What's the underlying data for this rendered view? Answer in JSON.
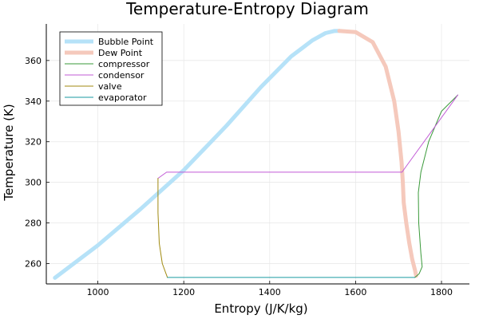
{
  "chart_data": {
    "type": "line",
    "title": "Temperature-Entropy Diagram",
    "xlabel": "Entropy (J/K/kg)",
    "ylabel": "Temperature (K)",
    "xlim": [
      880,
      1865
    ],
    "ylim": [
      250,
      378
    ],
    "xticks": [
      1000,
      1200,
      1400,
      1600,
      1800
    ],
    "yticks": [
      260,
      280,
      300,
      320,
      340,
      360
    ],
    "grid": true,
    "legend": "top-left",
    "series": [
      {
        "name": "Bubble Point",
        "color": "#b6e2f8",
        "width": 5,
        "x": [
          900,
          1000,
          1100,
          1200,
          1300,
          1380,
          1450,
          1500,
          1530,
          1550,
          1562
        ],
        "y": [
          253,
          269,
          287,
          306,
          328,
          347,
          362,
          370,
          373.5,
          374.5,
          374.6
        ]
      },
      {
        "name": "Dew Point",
        "color": "#f5c9bc",
        "width": 5,
        "x": [
          1562,
          1600,
          1640,
          1670,
          1690,
          1700,
          1707,
          1710,
          1712,
          1718,
          1725,
          1732,
          1738,
          1741
        ],
        "y": [
          374.6,
          374,
          369,
          357,
          340,
          325,
          310,
          300,
          290,
          280,
          270,
          262,
          257,
          254
        ]
      },
      {
        "name": "compressor",
        "color": "#3a9a3a",
        "width": 1,
        "x": [
          1738,
          1748,
          1755,
          1752,
          1747,
          1746,
          1752,
          1770,
          1800,
          1838
        ],
        "y": [
          253.2,
          255,
          258.5,
          265,
          280,
          295,
          305,
          320,
          335,
          343
        ]
      },
      {
        "name": "condensor",
        "color": "#c25bd6",
        "width": 1,
        "x": [
          1838,
          1708,
          1160,
          1140
        ],
        "y": [
          343,
          305,
          305,
          302
        ]
      },
      {
        "name": "valve",
        "color": "#a08a10",
        "width": 1,
        "x": [
          1140,
          1140,
          1143,
          1150,
          1162
        ],
        "y": [
          302,
          285,
          270,
          260,
          253.2
        ]
      },
      {
        "name": "evaporator",
        "color": "#1a9aa0",
        "width": 1,
        "x": [
          1162,
          1738
        ],
        "y": [
          253.2,
          253.2
        ]
      }
    ]
  }
}
